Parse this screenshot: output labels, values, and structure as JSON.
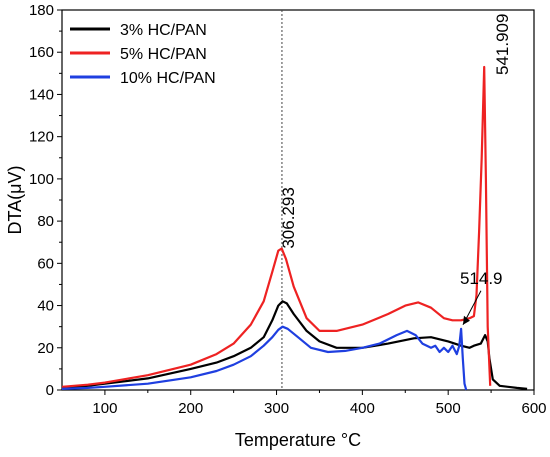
{
  "chart_data": {
    "type": "line",
    "title": "",
    "xlabel": "Temperature °C",
    "ylabel": "DTA(μV)",
    "xlim": [
      50,
      600
    ],
    "ylim": [
      0,
      180
    ],
    "xticks": [
      100,
      200,
      300,
      400,
      500,
      600
    ],
    "yticks": [
      0,
      20,
      40,
      60,
      80,
      100,
      120,
      140,
      160,
      180
    ],
    "grid": false,
    "legend_position": "top-left",
    "series": [
      {
        "name": "3% HC/PAN",
        "color": "#000000",
        "points": [
          [
            50,
            1
          ],
          [
            80,
            2
          ],
          [
            100,
            3
          ],
          [
            150,
            5.5
          ],
          [
            200,
            10
          ],
          [
            230,
            13
          ],
          [
            250,
            16
          ],
          [
            270,
            20
          ],
          [
            285,
            25
          ],
          [
            295,
            33
          ],
          [
            302,
            40
          ],
          [
            307,
            42
          ],
          [
            312,
            41
          ],
          [
            320,
            36
          ],
          [
            335,
            28
          ],
          [
            350,
            23
          ],
          [
            370,
            20
          ],
          [
            400,
            20
          ],
          [
            430,
            22
          ],
          [
            460,
            24.5
          ],
          [
            480,
            25
          ],
          [
            500,
            23
          ],
          [
            515,
            21
          ],
          [
            525,
            20
          ],
          [
            530,
            21
          ],
          [
            538,
            22
          ],
          [
            543,
            26
          ],
          [
            546,
            23
          ],
          [
            548,
            15
          ],
          [
            552,
            5
          ],
          [
            560,
            2
          ],
          [
            580,
            1
          ],
          [
            592,
            0.5
          ]
        ]
      },
      {
        "name": "5% HC/PAN",
        "color": "#ee2222",
        "points": [
          [
            50,
            1.5
          ],
          [
            80,
            2.5
          ],
          [
            100,
            3.5
          ],
          [
            150,
            7
          ],
          [
            200,
            12
          ],
          [
            230,
            17
          ],
          [
            250,
            22
          ],
          [
            270,
            31
          ],
          [
            285,
            42
          ],
          [
            295,
            56
          ],
          [
            302,
            66
          ],
          [
            306,
            67
          ],
          [
            311,
            62
          ],
          [
            320,
            49
          ],
          [
            335,
            34
          ],
          [
            350,
            28
          ],
          [
            370,
            28
          ],
          [
            400,
            31
          ],
          [
            430,
            36
          ],
          [
            450,
            40
          ],
          [
            465,
            41.5
          ],
          [
            480,
            39
          ],
          [
            495,
            34
          ],
          [
            505,
            33
          ],
          [
            515,
            33
          ],
          [
            525,
            34
          ],
          [
            530,
            35
          ],
          [
            533,
            45
          ],
          [
            536,
            75
          ],
          [
            539,
            110
          ],
          [
            542,
            153
          ],
          [
            544,
            100
          ],
          [
            546,
            30
          ],
          [
            549,
            2
          ]
        ]
      },
      {
        "name": "10% HC/PAN",
        "color": "#1f3fe0",
        "points": [
          [
            50,
            0.5
          ],
          [
            80,
            1
          ],
          [
            100,
            1.5
          ],
          [
            150,
            3
          ],
          [
            200,
            6
          ],
          [
            230,
            9
          ],
          [
            250,
            12
          ],
          [
            270,
            16
          ],
          [
            285,
            21
          ],
          [
            295,
            25
          ],
          [
            302,
            28.5
          ],
          [
            307,
            30
          ],
          [
            313,
            29
          ],
          [
            325,
            25
          ],
          [
            340,
            20
          ],
          [
            360,
            18
          ],
          [
            380,
            18.5
          ],
          [
            400,
            20
          ],
          [
            420,
            22
          ],
          [
            440,
            26
          ],
          [
            452,
            28
          ],
          [
            462,
            26
          ],
          [
            470,
            22
          ],
          [
            480,
            20
          ],
          [
            485,
            21
          ],
          [
            490,
            18
          ],
          [
            495,
            20
          ],
          [
            500,
            18
          ],
          [
            505,
            21
          ],
          [
            510,
            17
          ],
          [
            513,
            21
          ],
          [
            515,
            29
          ],
          [
            517,
            15
          ],
          [
            519,
            3
          ],
          [
            521,
            0
          ]
        ]
      }
    ],
    "vline_x": 306.293,
    "annotations": [
      {
        "text": "306.293",
        "x": 306.293,
        "y": 66
      },
      {
        "text": "541.909",
        "x": 541.909,
        "y": 153
      },
      {
        "text": "514.9",
        "x": 514.9,
        "y": 29
      }
    ]
  }
}
